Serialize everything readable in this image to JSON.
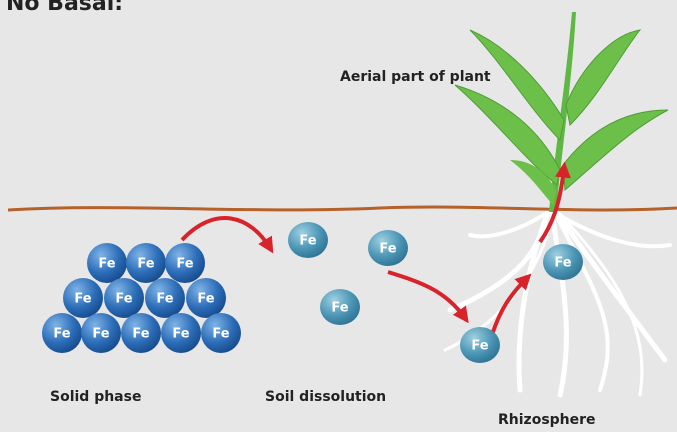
{
  "title": "No Basal:",
  "aerial_label": "Aerial part of plant",
  "solid_phase": {
    "label": "Solid phase",
    "ions": [
      "Fe",
      "Fe",
      "Fe",
      "Fe",
      "Fe",
      "Fe",
      "Fe",
      "Fe",
      "Fe",
      "Fe",
      "Fe",
      "Fe"
    ]
  },
  "soil_dissolution": {
    "label": "Soil dissolution",
    "ions": [
      "Fe",
      "Fe",
      "Fe"
    ]
  },
  "rhizosphere": {
    "label": "Rhizosphere",
    "ions": [
      "Fe",
      "Fe"
    ]
  }
}
